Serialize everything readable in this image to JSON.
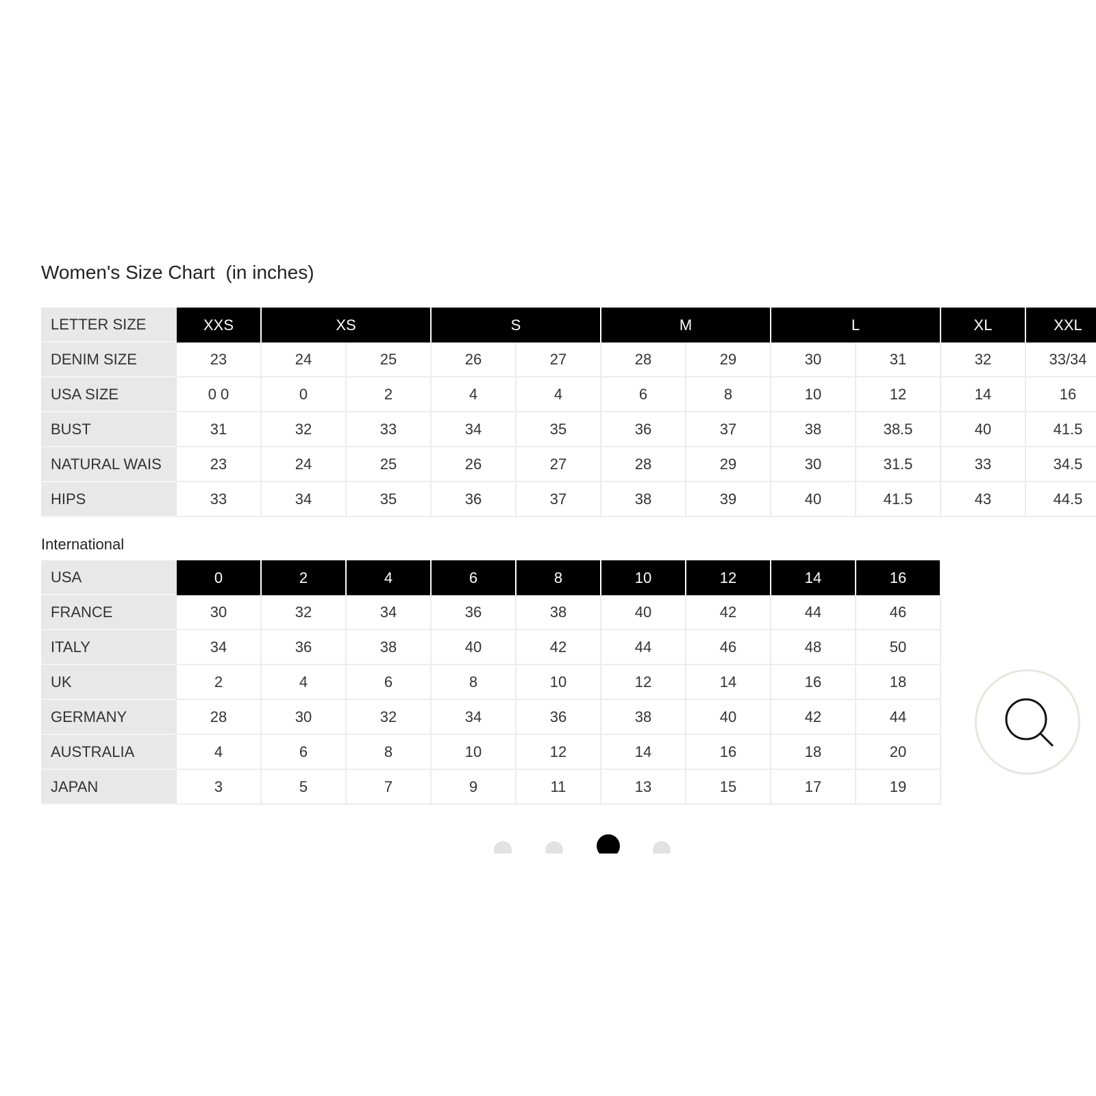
{
  "title": "Women's Size Chart  (in inches)",
  "size_table": {
    "header": {
      "label": "LETTER SIZE",
      "sizes": [
        "XXS",
        "XS",
        "S",
        "M",
        "L",
        "XL",
        "XXL"
      ]
    },
    "rows": [
      {
        "label": "DENIM SIZE",
        "cells": [
          23,
          24,
          25,
          26,
          27,
          28,
          29,
          30,
          31,
          32,
          "33/34"
        ]
      },
      {
        "label": "USA SIZE",
        "cells": [
          "0 0",
          0,
          2,
          4,
          4,
          6,
          8,
          10,
          12,
          14,
          16
        ]
      },
      {
        "label": "BUST",
        "cells": [
          31,
          32,
          33,
          34,
          35,
          36,
          37,
          38,
          38.5,
          40,
          41.5
        ]
      },
      {
        "label": "NATURAL WAIS",
        "cells": [
          23,
          24,
          25,
          26,
          27,
          28,
          29,
          30,
          31.5,
          33,
          34.5
        ]
      },
      {
        "label": "HIPS",
        "cells": [
          33,
          34,
          35,
          36,
          37,
          38,
          39,
          40,
          41.5,
          43,
          44.5
        ]
      }
    ]
  },
  "international": {
    "title": "International",
    "header": {
      "label": "USA",
      "cells": [
        0,
        2,
        4,
        6,
        8,
        10,
        12,
        14,
        16
      ]
    },
    "rows": [
      {
        "label": "FRANCE",
        "cells": [
          30,
          32,
          34,
          36,
          38,
          40,
          42,
          44,
          46
        ]
      },
      {
        "label": "ITALY",
        "cells": [
          34,
          36,
          38,
          40,
          42,
          44,
          46,
          48,
          50
        ]
      },
      {
        "label": "UK",
        "cells": [
          2,
          4,
          6,
          8,
          10,
          12,
          14,
          16,
          18
        ]
      },
      {
        "label": "GERMANY",
        "cells": [
          28,
          30,
          32,
          34,
          36,
          38,
          40,
          42,
          44
        ]
      },
      {
        "label": "AUSTRALIA",
        "cells": [
          4,
          6,
          8,
          10,
          12,
          14,
          16,
          18,
          20
        ]
      },
      {
        "label": "JAPAN",
        "cells": [
          3,
          5,
          7,
          9,
          11,
          13,
          15,
          17,
          19
        ]
      }
    ]
  }
}
